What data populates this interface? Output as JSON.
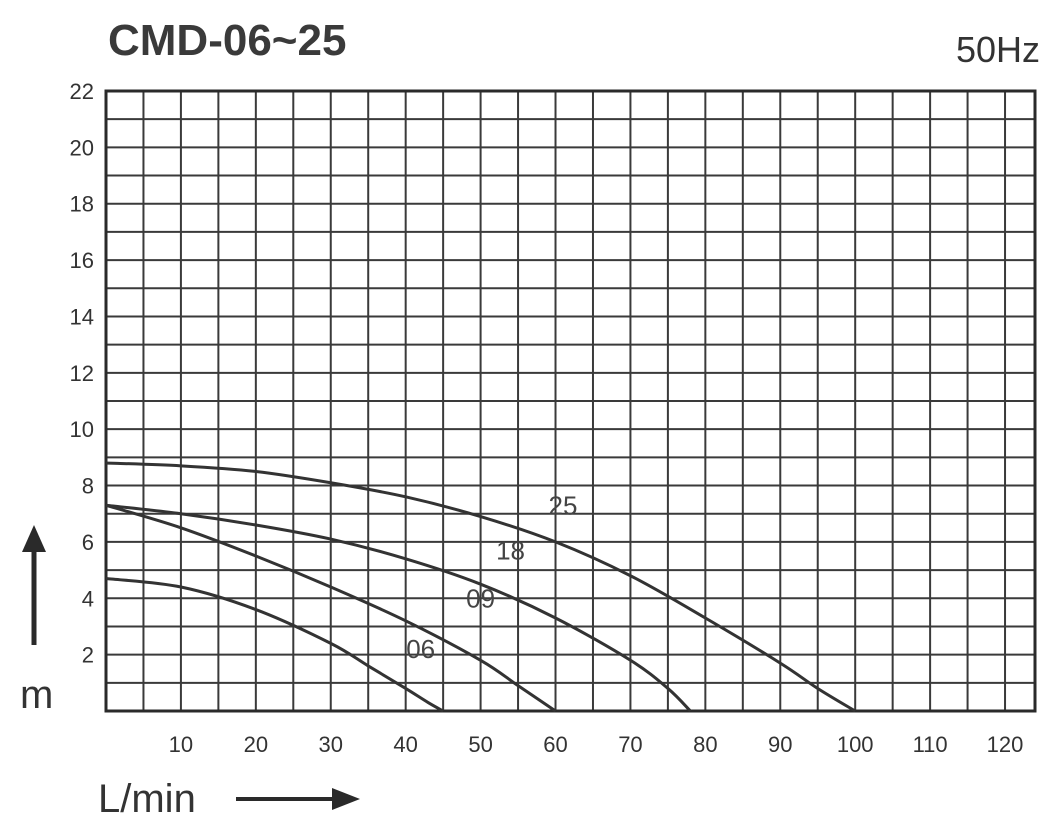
{
  "chart_data": {
    "type": "line",
    "title": "CMD-06~25",
    "subtitle": "50Hz",
    "xlabel": "L/min",
    "ylabel": "m",
    "xlim": [
      0,
      124
    ],
    "ylim": [
      0,
      22
    ],
    "x_ticks": [
      10,
      20,
      30,
      40,
      50,
      60,
      70,
      80,
      90,
      100,
      110,
      120
    ],
    "y_ticks": [
      2,
      4,
      6,
      8,
      10,
      12,
      14,
      16,
      18,
      20,
      22
    ],
    "grid": true,
    "series": [
      {
        "name": "06",
        "label_at": [
          42,
          2.2
        ],
        "x": [
          0,
          10,
          20,
          30,
          35,
          40,
          43,
          45
        ],
        "y": [
          4.7,
          4.4,
          3.6,
          2.4,
          1.6,
          0.8,
          0.3,
          0
        ]
      },
      {
        "name": "09",
        "label_at": [
          50,
          4.0
        ],
        "x": [
          0,
          10,
          20,
          30,
          40,
          50,
          55,
          60
        ],
        "y": [
          7.3,
          6.5,
          5.5,
          4.4,
          3.2,
          1.8,
          0.9,
          0
        ]
      },
      {
        "name": "18",
        "label_at": [
          54,
          5.7
        ],
        "x": [
          0,
          10,
          20,
          30,
          40,
          50,
          60,
          70,
          75,
          78
        ],
        "y": [
          7.3,
          7.0,
          6.6,
          6.1,
          5.4,
          4.5,
          3.3,
          1.8,
          0.8,
          0
        ]
      },
      {
        "name": "25",
        "label_at": [
          61,
          7.3
        ],
        "x": [
          0,
          10,
          20,
          30,
          40,
          50,
          60,
          70,
          80,
          90,
          95,
          100
        ],
        "y": [
          8.8,
          8.7,
          8.5,
          8.1,
          7.6,
          6.9,
          6.0,
          4.8,
          3.3,
          1.7,
          0.8,
          0
        ]
      }
    ]
  }
}
